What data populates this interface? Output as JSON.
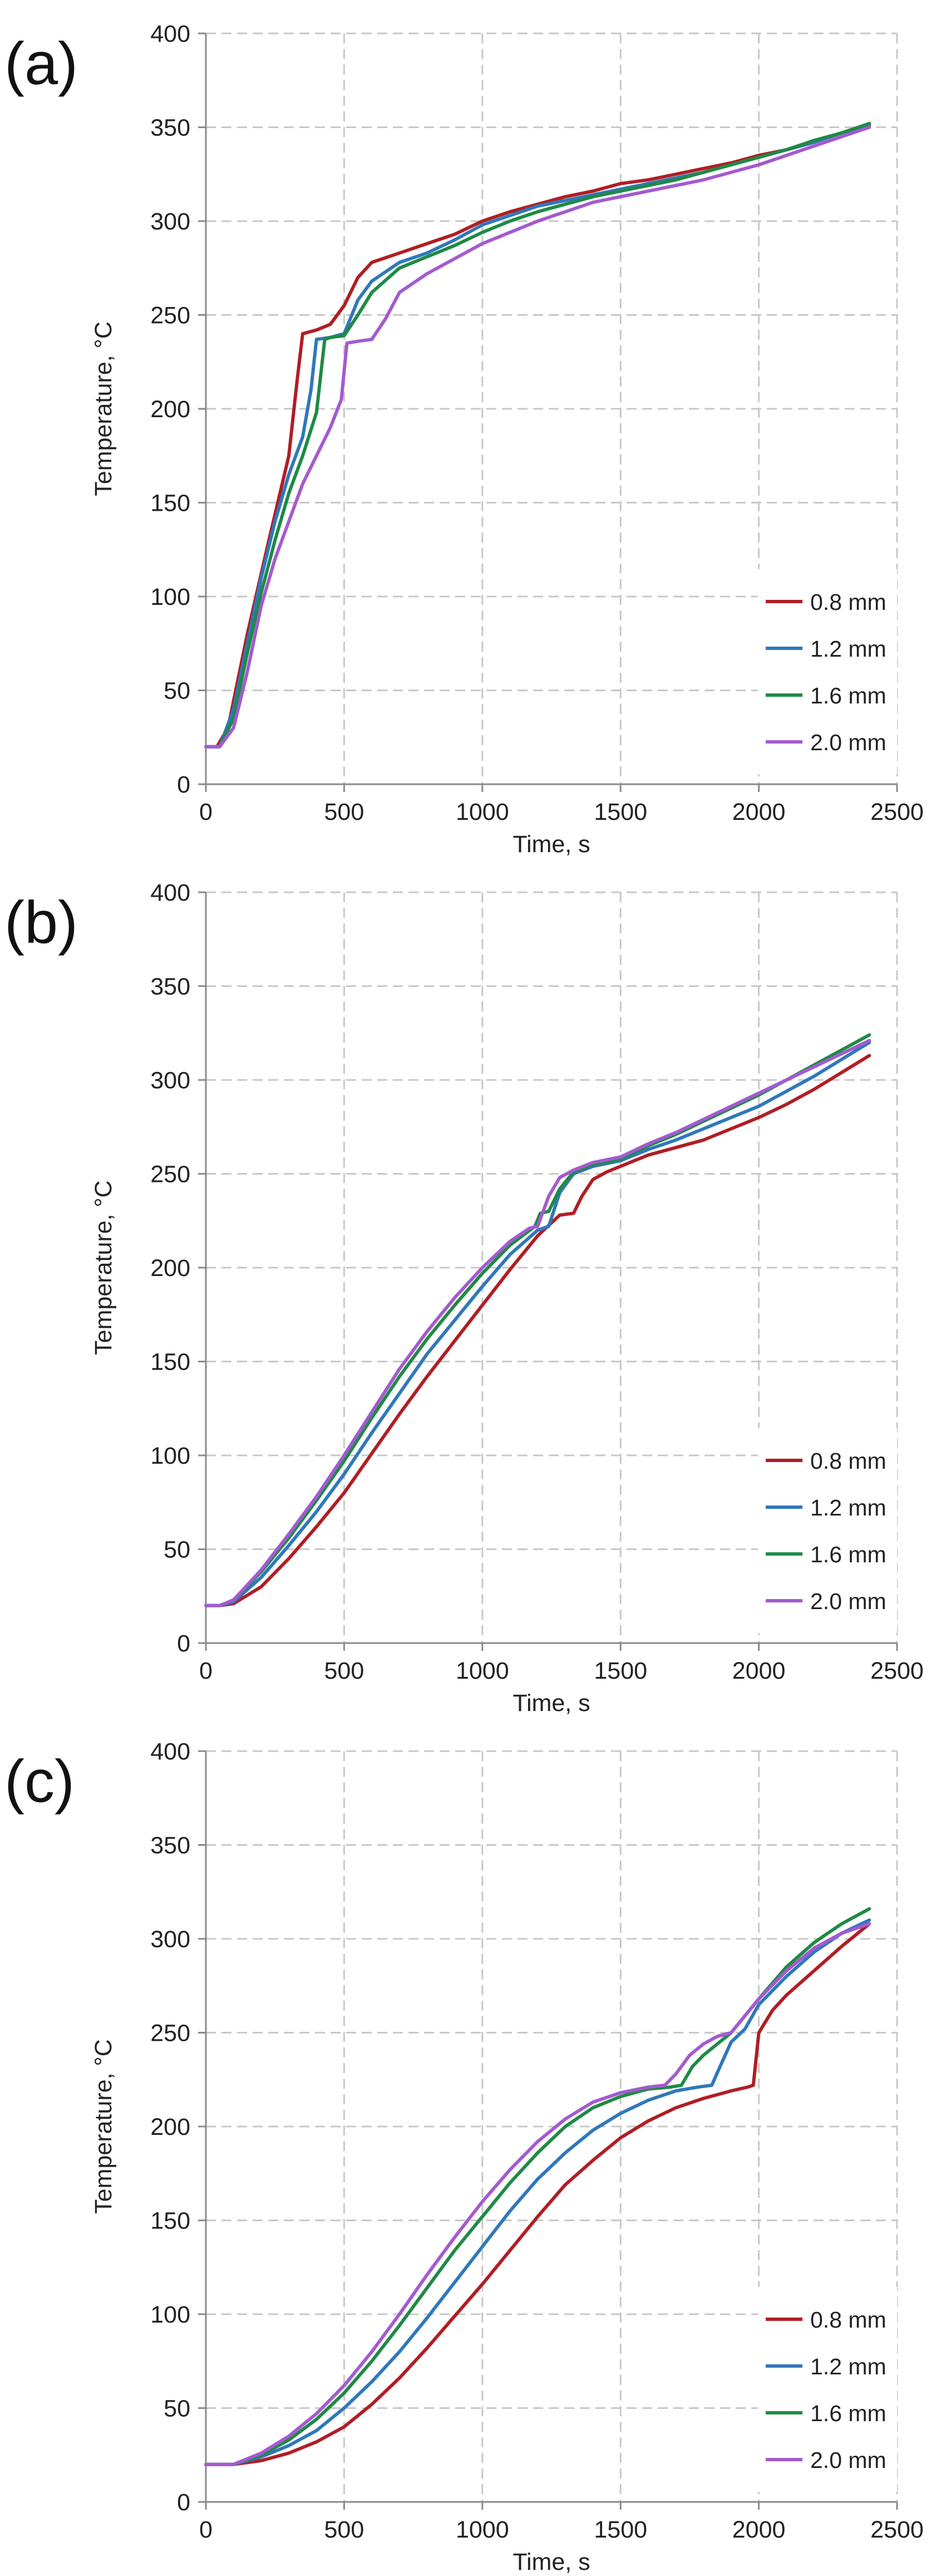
{
  "colors": {
    "0.8 mm": "#b01e24",
    "1.2 mm": "#2f78bb",
    "1.6 mm": "#1f8a45",
    "2.0 mm": "#a45ad0",
    "grid": "#c8c8c8",
    "axis": "#8a8a8a"
  },
  "chart_data": [
    {
      "panel_label": "(a)",
      "type": "line",
      "title": "",
      "xlabel": "Time, s",
      "ylabel": "Temperature, °C",
      "xlim": [
        0,
        2500
      ],
      "ylim": [
        0,
        400
      ],
      "xticks": [
        0,
        500,
        1000,
        1500,
        2000,
        2500
      ],
      "yticks": [
        0,
        50,
        100,
        150,
        200,
        250,
        300,
        350,
        400
      ],
      "legend_position": "bottom-right",
      "series": [
        {
          "name": "0.8 mm",
          "x": [
            0,
            40,
            80,
            150,
            220,
            300,
            330,
            350,
            400,
            450,
            500,
            550,
            600,
            700,
            800,
            900,
            1000,
            1100,
            1200,
            1300,
            1400,
            1500,
            1600,
            1700,
            1800,
            1900,
            2000,
            2100,
            2200,
            2300,
            2400
          ],
          "y": [
            20,
            20,
            30,
            80,
            125,
            175,
            215,
            240,
            242,
            245,
            255,
            270,
            278,
            283,
            288,
            293,
            300,
            305,
            309,
            313,
            316,
            320,
            322,
            325,
            328,
            331,
            335,
            338,
            342,
            347,
            352
          ]
        },
        {
          "name": "1.2 mm",
          "x": [
            0,
            50,
            100,
            150,
            200,
            250,
            300,
            350,
            380,
            400,
            450,
            500,
            550,
            600,
            700,
            800,
            900,
            1000,
            1100,
            1200,
            1300,
            1400,
            1500,
            1600,
            1700,
            1800,
            1900,
            2000,
            2100,
            2200,
            2300,
            2400
          ],
          "y": [
            20,
            20,
            40,
            75,
            110,
            140,
            165,
            185,
            210,
            237,
            238,
            240,
            258,
            268,
            278,
            283,
            290,
            298,
            303,
            308,
            311,
            314,
            317,
            320,
            323,
            326,
            330,
            334,
            338,
            342,
            347,
            351
          ]
        },
        {
          "name": "1.6 mm",
          "x": [
            0,
            50,
            100,
            150,
            200,
            250,
            300,
            350,
            400,
            430,
            450,
            500,
            550,
            600,
            700,
            800,
            900,
            1000,
            1100,
            1200,
            1300,
            1400,
            1500,
            1600,
            1700,
            1800,
            1900,
            2000,
            2100,
            2200,
            2300,
            2400
          ],
          "y": [
            20,
            20,
            35,
            70,
            102,
            130,
            155,
            175,
            198,
            237,
            238,
            239,
            250,
            262,
            275,
            281,
            287,
            294,
            300,
            305,
            309,
            313,
            316,
            319,
            322,
            326,
            330,
            334,
            338,
            343,
            347,
            352
          ]
        },
        {
          "name": "2.0 mm",
          "x": [
            0,
            50,
            100,
            150,
            200,
            250,
            300,
            350,
            400,
            450,
            490,
            510,
            550,
            600,
            650,
            700,
            800,
            900,
            1000,
            1100,
            1200,
            1300,
            1400,
            1500,
            1600,
            1700,
            1800,
            1900,
            2000,
            2100,
            2200,
            2300,
            2400
          ],
          "y": [
            20,
            20,
            30,
            60,
            95,
            120,
            140,
            160,
            175,
            190,
            205,
            235,
            236,
            237,
            248,
            262,
            272,
            280,
            288,
            294,
            300,
            305,
            310,
            313,
            316,
            319,
            322,
            326,
            330,
            335,
            340,
            345,
            350
          ]
        }
      ]
    },
    {
      "panel_label": "(b)",
      "type": "line",
      "title": "",
      "xlabel": "Time, s",
      "ylabel": "Temperature, °C",
      "xlim": [
        0,
        2500
      ],
      "ylim": [
        0,
        400
      ],
      "xticks": [
        0,
        500,
        1000,
        1500,
        2000,
        2500
      ],
      "yticks": [
        0,
        50,
        100,
        150,
        200,
        250,
        300,
        350,
        400
      ],
      "legend_position": "bottom-right",
      "series": [
        {
          "name": "0.8 mm",
          "x": [
            0,
            50,
            100,
            200,
            300,
            400,
            500,
            600,
            700,
            800,
            900,
            1000,
            1100,
            1200,
            1280,
            1330,
            1360,
            1400,
            1450,
            1500,
            1600,
            1700,
            1800,
            1900,
            2000,
            2100,
            2200,
            2300,
            2400
          ],
          "y": [
            20,
            20,
            21,
            30,
            45,
            62,
            80,
            101,
            122,
            142,
            161,
            180,
            199,
            217,
            228,
            229,
            238,
            247,
            251,
            254,
            260,
            264,
            268,
            274,
            280,
            287,
            295,
            304,
            313
          ]
        },
        {
          "name": "1.2 mm",
          "x": [
            0,
            50,
            100,
            200,
            300,
            400,
            500,
            600,
            700,
            800,
            900,
            1000,
            1100,
            1200,
            1240,
            1280,
            1330,
            1400,
            1500,
            1600,
            1700,
            1800,
            1900,
            2000,
            2100,
            2200,
            2300,
            2400
          ],
          "y": [
            20,
            20,
            22,
            35,
            52,
            70,
            90,
            112,
            133,
            154,
            172,
            190,
            207,
            220,
            222,
            240,
            250,
            254,
            257,
            263,
            268,
            274,
            280,
            286,
            294,
            302,
            311,
            320
          ]
        },
        {
          "name": "1.6 mm",
          "x": [
            0,
            50,
            100,
            200,
            300,
            400,
            500,
            600,
            700,
            800,
            900,
            1000,
            1100,
            1190,
            1210,
            1240,
            1280,
            1330,
            1400,
            1500,
            1600,
            1700,
            1800,
            1900,
            2000,
            2100,
            2200,
            2300,
            2400
          ],
          "y": [
            20,
            20,
            23,
            38,
            56,
            76,
            97,
            120,
            142,
            162,
            180,
            197,
            212,
            222,
            229,
            230,
            242,
            251,
            255,
            258,
            265,
            271,
            278,
            285,
            292,
            300,
            308,
            316,
            324
          ]
        },
        {
          "name": "2.0 mm",
          "x": [
            0,
            50,
            100,
            200,
            300,
            400,
            500,
            600,
            700,
            800,
            900,
            1000,
            1100,
            1170,
            1200,
            1240,
            1280,
            1330,
            1400,
            1500,
            1600,
            1700,
            1800,
            1900,
            2000,
            2100,
            2200,
            2300,
            2400
          ],
          "y": [
            20,
            20,
            23,
            39,
            58,
            78,
            100,
            123,
            146,
            166,
            184,
            200,
            214,
            221,
            222,
            238,
            248,
            252,
            256,
            259,
            266,
            272,
            279,
            286,
            293,
            300,
            307,
            314,
            321
          ]
        }
      ]
    },
    {
      "panel_label": "(c)",
      "type": "line",
      "title": "",
      "xlabel": "Time, s",
      "ylabel": "Temperature, °C",
      "xlim": [
        0,
        2500
      ],
      "ylim": [
        0,
        400
      ],
      "xticks": [
        0,
        500,
        1000,
        1500,
        2000,
        2500
      ],
      "yticks": [
        0,
        50,
        100,
        150,
        200,
        250,
        300,
        350,
        400
      ],
      "legend_position": "bottom-right",
      "series": [
        {
          "name": "0.8 mm",
          "x": [
            0,
            100,
            200,
            300,
            400,
            500,
            600,
            700,
            800,
            900,
            1000,
            1100,
            1200,
            1300,
            1400,
            1500,
            1600,
            1700,
            1800,
            1900,
            1960,
            1980,
            2000,
            2050,
            2100,
            2200,
            2300,
            2400
          ],
          "y": [
            20,
            20,
            22,
            26,
            32,
            40,
            52,
            66,
            82,
            99,
            116,
            134,
            152,
            169,
            182,
            194,
            203,
            210,
            215,
            219,
            221,
            222,
            250,
            262,
            270,
            283,
            296,
            308
          ]
        },
        {
          "name": "1.2 mm",
          "x": [
            0,
            100,
            200,
            300,
            400,
            500,
            600,
            700,
            800,
            900,
            1000,
            1100,
            1200,
            1300,
            1400,
            1500,
            1600,
            1700,
            1780,
            1830,
            1860,
            1900,
            1950,
            2000,
            2100,
            2200,
            2300,
            2400
          ],
          "y": [
            20,
            20,
            24,
            30,
            38,
            50,
            64,
            80,
            98,
            117,
            136,
            155,
            172,
            186,
            198,
            207,
            214,
            219,
            221,
            222,
            232,
            245,
            252,
            265,
            280,
            293,
            303,
            310
          ]
        },
        {
          "name": "1.6 mm",
          "x": [
            0,
            100,
            200,
            300,
            400,
            500,
            600,
            700,
            800,
            900,
            1000,
            1100,
            1200,
            1300,
            1400,
            1500,
            1600,
            1680,
            1720,
            1760,
            1800,
            1850,
            1900,
            2000,
            2100,
            2200,
            2300,
            2400
          ],
          "y": [
            20,
            20,
            25,
            33,
            44,
            58,
            75,
            94,
            114,
            134,
            152,
            170,
            186,
            200,
            210,
            216,
            220,
            221,
            222,
            232,
            238,
            244,
            250,
            268,
            285,
            298,
            308,
            316
          ]
        },
        {
          "name": "2.0 mm",
          "x": [
            0,
            100,
            200,
            300,
            400,
            500,
            600,
            700,
            800,
            900,
            1000,
            1100,
            1200,
            1300,
            1400,
            1500,
            1600,
            1660,
            1700,
            1750,
            1800,
            1850,
            1900,
            2000,
            2100,
            2200,
            2300,
            2400
          ],
          "y": [
            20,
            20,
            26,
            35,
            47,
            62,
            80,
            100,
            121,
            141,
            160,
            177,
            192,
            204,
            213,
            218,
            221,
            222,
            228,
            238,
            244,
            248,
            250,
            268,
            283,
            295,
            303,
            308
          ]
        }
      ]
    }
  ]
}
